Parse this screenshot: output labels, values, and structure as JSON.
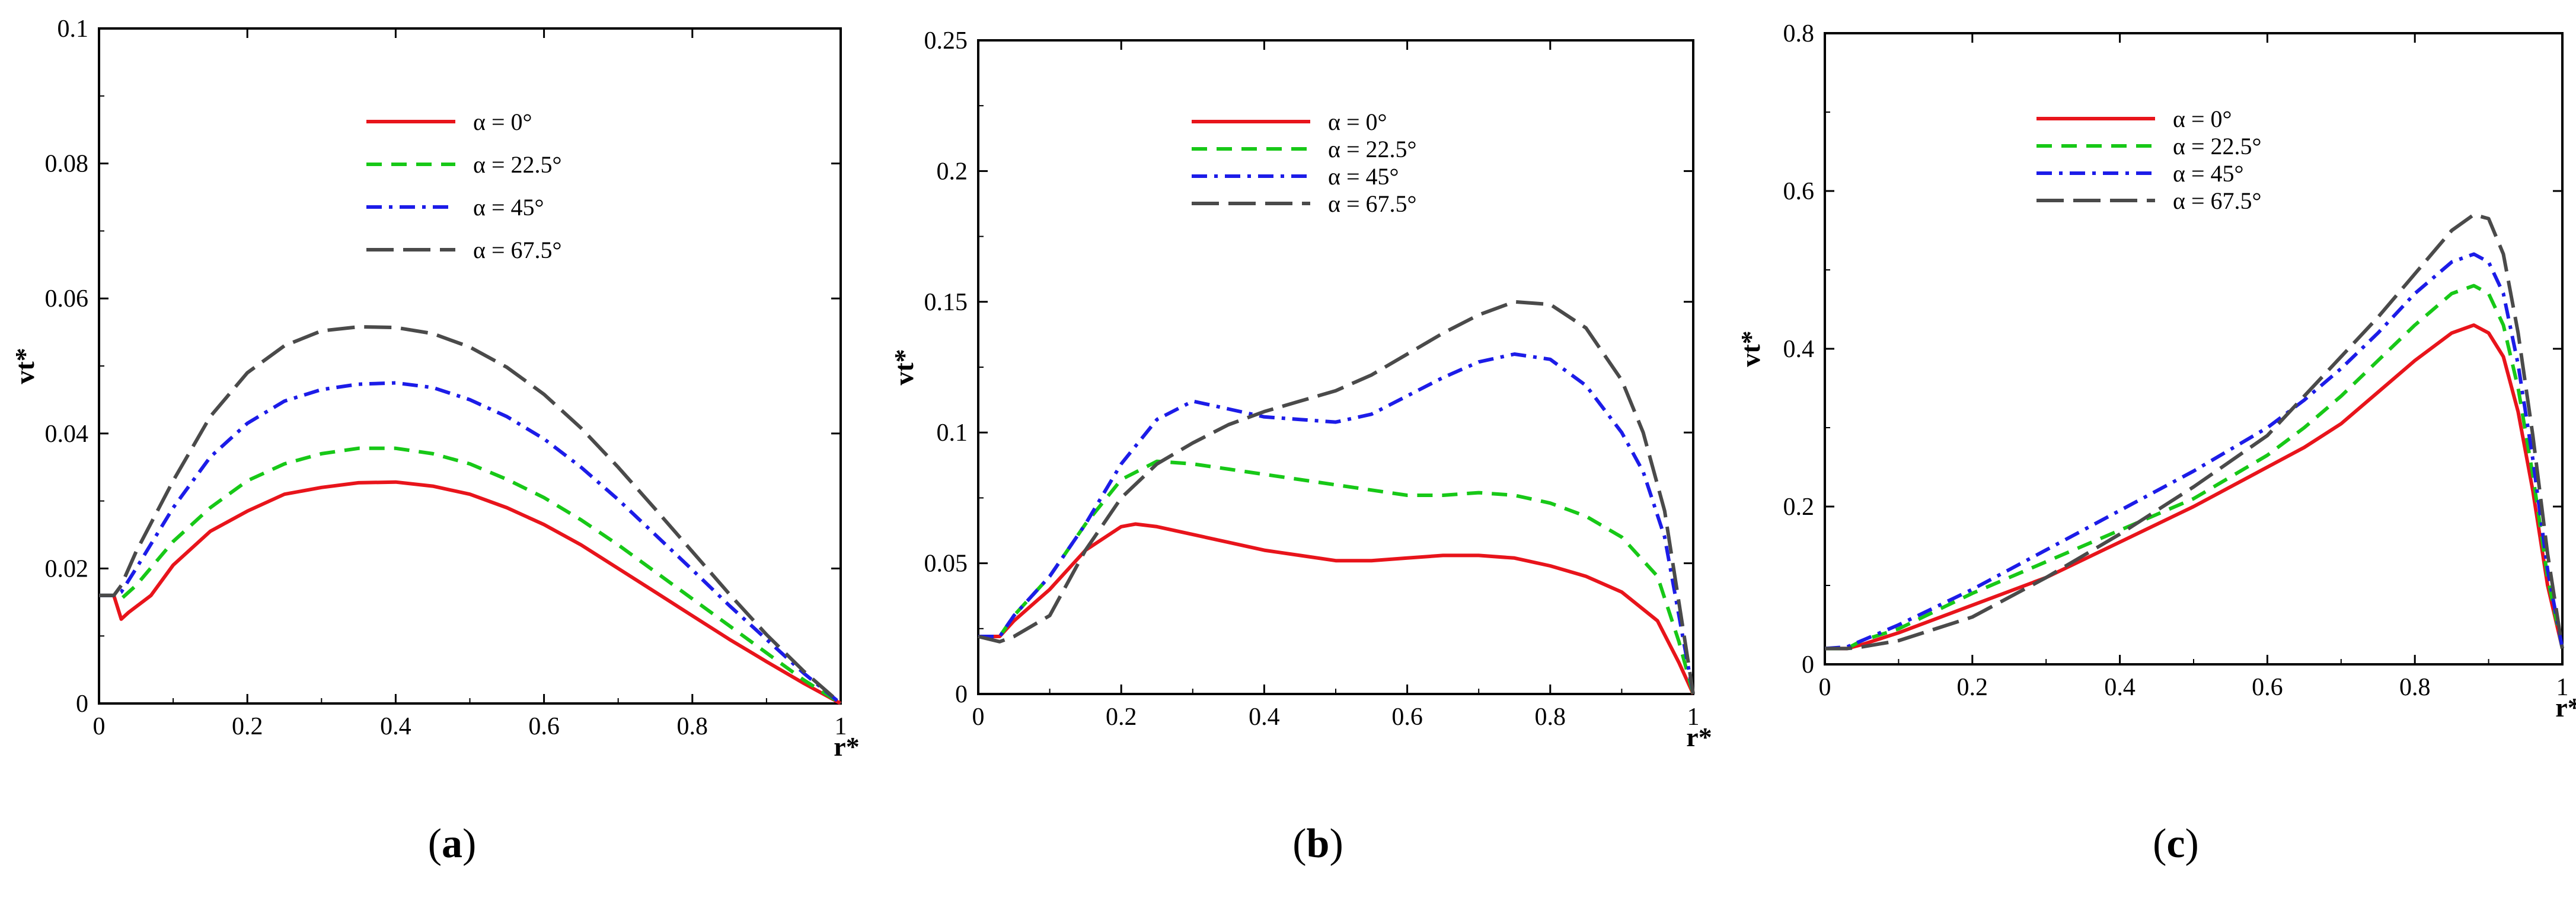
{
  "chart_data": [
    {
      "type": "line",
      "caption": "a",
      "xlabel": "r*",
      "ylabel": "vt*",
      "xlim": [
        0,
        1
      ],
      "ylim": [
        0,
        0.1
      ],
      "xticks": [
        0,
        0.2,
        0.4,
        0.6,
        0.8,
        1
      ],
      "xtick_labels": [
        "0",
        "0.2",
        "0.4",
        "0.6",
        "0.8",
        "1"
      ],
      "yticks": [
        0,
        0.02,
        0.04,
        0.06,
        0.08,
        0.1
      ],
      "ytick_labels": [
        "0",
        "0.02",
        "0.04",
        "0.06",
        "0.08",
        "0.1"
      ],
      "legend_position": "top-center",
      "series": [
        {
          "name": "α = 0°",
          "color": "#e8141b",
          "style": "solid",
          "x": [
            0,
            0.02,
            0.03,
            0.04,
            0.07,
            0.1,
            0.15,
            0.2,
            0.25,
            0.3,
            0.35,
            0.4,
            0.45,
            0.5,
            0.55,
            0.6,
            0.65,
            0.7,
            0.75,
            0.8,
            0.85,
            0.9,
            0.95,
            1.0
          ],
          "y": [
            0.016,
            0.016,
            0.0125,
            0.0135,
            0.016,
            0.0205,
            0.0255,
            0.0285,
            0.031,
            0.032,
            0.0327,
            0.0328,
            0.0322,
            0.031,
            0.029,
            0.0265,
            0.0235,
            0.02,
            0.0165,
            0.013,
            0.0095,
            0.0062,
            0.003,
            0.0
          ]
        },
        {
          "name": "α = 22.5°",
          "color": "#17c817",
          "style": "dash",
          "x": [
            0,
            0.02,
            0.03,
            0.05,
            0.1,
            0.15,
            0.2,
            0.25,
            0.3,
            0.35,
            0.4,
            0.45,
            0.5,
            0.55,
            0.6,
            0.65,
            0.7,
            0.75,
            0.8,
            0.85,
            0.9,
            0.95,
            1.0
          ],
          "y": [
            0.016,
            0.016,
            0.0155,
            0.0175,
            0.024,
            0.029,
            0.033,
            0.0355,
            0.037,
            0.0378,
            0.0378,
            0.037,
            0.0355,
            0.0332,
            0.0305,
            0.0272,
            0.0235,
            0.0195,
            0.0155,
            0.0115,
            0.0075,
            0.0035,
            0.0
          ]
        },
        {
          "name": "α = 45°",
          "color": "#1c1ce8",
          "style": "dashdot",
          "x": [
            0,
            0.02,
            0.03,
            0.05,
            0.1,
            0.15,
            0.2,
            0.25,
            0.3,
            0.35,
            0.4,
            0.45,
            0.5,
            0.55,
            0.6,
            0.65,
            0.7,
            0.75,
            0.8,
            0.85,
            0.9,
            0.95,
            1.0
          ],
          "y": [
            0.016,
            0.016,
            0.0165,
            0.02,
            0.029,
            0.0365,
            0.0415,
            0.0448,
            0.0465,
            0.0473,
            0.0475,
            0.0468,
            0.045,
            0.0425,
            0.0392,
            0.035,
            0.0302,
            0.025,
            0.0198,
            0.0145,
            0.0095,
            0.0045,
            0.0
          ]
        },
        {
          "name": "α = 67.5°",
          "color": "#4a4a4a",
          "style": "longdash",
          "x": [
            0,
            0.02,
            0.03,
            0.05,
            0.1,
            0.15,
            0.2,
            0.25,
            0.3,
            0.35,
            0.4,
            0.45,
            0.5,
            0.55,
            0.6,
            0.65,
            0.7,
            0.75,
            0.8,
            0.85,
            0.9,
            0.95,
            1.0
          ],
          "y": [
            0.016,
            0.016,
            0.0175,
            0.0225,
            0.033,
            0.0425,
            0.049,
            0.053,
            0.0552,
            0.0558,
            0.0557,
            0.0548,
            0.0528,
            0.0498,
            0.0458,
            0.0408,
            0.035,
            0.0288,
            0.0225,
            0.0162,
            0.0102,
            0.0048,
            0.0
          ]
        }
      ]
    },
    {
      "type": "line",
      "caption": "b",
      "xlabel": "r*",
      "ylabel": "vt*",
      "xlim": [
        0,
        1
      ],
      "ylim": [
        0,
        0.25
      ],
      "xticks": [
        0,
        0.2,
        0.4,
        0.6,
        0.8,
        1
      ],
      "xtick_labels": [
        "0",
        "0.2",
        "0.4",
        "0.6",
        "0.8",
        "1"
      ],
      "yticks": [
        0,
        0.05,
        0.1,
        0.15,
        0.2,
        0.25
      ],
      "ytick_labels": [
        "0",
        "0.05",
        "0.1",
        "0.15",
        "0.2",
        "0.25"
      ],
      "legend_position": "top-center",
      "series": [
        {
          "name": "α = 0°",
          "color": "#e8141b",
          "style": "solid",
          "x": [
            0,
            0.03,
            0.05,
            0.1,
            0.15,
            0.2,
            0.22,
            0.25,
            0.3,
            0.35,
            0.4,
            0.45,
            0.5,
            0.55,
            0.6,
            0.65,
            0.7,
            0.75,
            0.8,
            0.85,
            0.9,
            0.95,
            0.98,
            1.0
          ],
          "y": [
            0.022,
            0.022,
            0.028,
            0.04,
            0.055,
            0.064,
            0.065,
            0.064,
            0.061,
            0.058,
            0.055,
            0.053,
            0.051,
            0.051,
            0.052,
            0.053,
            0.053,
            0.052,
            0.049,
            0.045,
            0.039,
            0.028,
            0.012,
            0.0
          ]
        },
        {
          "name": "α = 22.5°",
          "color": "#17c817",
          "style": "dash",
          "x": [
            0,
            0.03,
            0.05,
            0.1,
            0.15,
            0.2,
            0.25,
            0.3,
            0.35,
            0.4,
            0.45,
            0.5,
            0.55,
            0.6,
            0.65,
            0.7,
            0.75,
            0.8,
            0.85,
            0.9,
            0.95,
            0.98,
            1.0
          ],
          "y": [
            0.022,
            0.022,
            0.03,
            0.045,
            0.065,
            0.082,
            0.089,
            0.088,
            0.086,
            0.084,
            0.082,
            0.08,
            0.078,
            0.076,
            0.076,
            0.077,
            0.076,
            0.073,
            0.068,
            0.06,
            0.045,
            0.02,
            0.0
          ]
        },
        {
          "name": "α = 45°",
          "color": "#1c1ce8",
          "style": "dashdot",
          "x": [
            0,
            0.03,
            0.05,
            0.1,
            0.15,
            0.2,
            0.25,
            0.3,
            0.35,
            0.4,
            0.45,
            0.5,
            0.55,
            0.6,
            0.65,
            0.7,
            0.75,
            0.8,
            0.85,
            0.9,
            0.93,
            0.96,
            0.98,
            1.0
          ],
          "y": [
            0.022,
            0.022,
            0.03,
            0.045,
            0.065,
            0.088,
            0.105,
            0.112,
            0.109,
            0.106,
            0.105,
            0.104,
            0.107,
            0.114,
            0.121,
            0.127,
            0.13,
            0.128,
            0.118,
            0.1,
            0.085,
            0.06,
            0.03,
            0.0
          ]
        },
        {
          "name": "α = 67.5°",
          "color": "#4a4a4a",
          "style": "longdash",
          "x": [
            0,
            0.03,
            0.05,
            0.1,
            0.15,
            0.2,
            0.25,
            0.3,
            0.35,
            0.4,
            0.45,
            0.5,
            0.55,
            0.6,
            0.65,
            0.7,
            0.75,
            0.8,
            0.85,
            0.9,
            0.93,
            0.96,
            0.98,
            1.0
          ],
          "y": [
            0.022,
            0.02,
            0.022,
            0.03,
            0.055,
            0.075,
            0.088,
            0.096,
            0.103,
            0.108,
            0.112,
            0.116,
            0.122,
            0.13,
            0.138,
            0.145,
            0.15,
            0.149,
            0.14,
            0.12,
            0.1,
            0.07,
            0.035,
            0.0
          ]
        }
      ]
    },
    {
      "type": "line",
      "caption": "c",
      "xlabel": "r*",
      "ylabel": "vt*",
      "xlim": [
        0,
        1
      ],
      "ylim": [
        0,
        0.8
      ],
      "xticks": [
        0,
        0.2,
        0.4,
        0.6,
        0.8,
        1
      ],
      "xtick_labels": [
        "0",
        "0.2",
        "0.4",
        "0.6",
        "0.8",
        "1"
      ],
      "yticks": [
        0,
        0.2,
        0.4,
        0.6,
        0.8
      ],
      "ytick_labels": [
        "0",
        "0.2",
        "0.4",
        "0.6",
        "0.8"
      ],
      "legend_position": "top-center",
      "series": [
        {
          "name": "α = 0°",
          "color": "#e8141b",
          "style": "solid",
          "x": [
            0,
            0.03,
            0.05,
            0.1,
            0.2,
            0.3,
            0.4,
            0.5,
            0.6,
            0.65,
            0.7,
            0.75,
            0.8,
            0.85,
            0.88,
            0.9,
            0.92,
            0.94,
            0.96,
            0.98,
            1.0
          ],
          "y": [
            0.02,
            0.02,
            0.025,
            0.04,
            0.075,
            0.11,
            0.155,
            0.2,
            0.25,
            0.275,
            0.305,
            0.345,
            0.385,
            0.42,
            0.43,
            0.42,
            0.39,
            0.32,
            0.22,
            0.1,
            0.02
          ]
        },
        {
          "name": "α = 22.5°",
          "color": "#17c817",
          "style": "dash",
          "x": [
            0,
            0.03,
            0.05,
            0.1,
            0.2,
            0.3,
            0.4,
            0.5,
            0.6,
            0.65,
            0.7,
            0.75,
            0.8,
            0.85,
            0.88,
            0.9,
            0.92,
            0.94,
            0.96,
            0.98,
            1.0
          ],
          "y": [
            0.02,
            0.02,
            0.03,
            0.045,
            0.09,
            0.13,
            0.17,
            0.21,
            0.265,
            0.3,
            0.34,
            0.385,
            0.43,
            0.47,
            0.48,
            0.47,
            0.43,
            0.35,
            0.24,
            0.11,
            0.02
          ]
        },
        {
          "name": "α = 45°",
          "color": "#1c1ce8",
          "style": "dashdot",
          "x": [
            0,
            0.03,
            0.05,
            0.1,
            0.2,
            0.3,
            0.4,
            0.5,
            0.6,
            0.65,
            0.7,
            0.75,
            0.8,
            0.85,
            0.88,
            0.9,
            0.92,
            0.94,
            0.96,
            0.98,
            1.0
          ],
          "y": [
            0.02,
            0.022,
            0.03,
            0.05,
            0.095,
            0.145,
            0.195,
            0.245,
            0.3,
            0.335,
            0.375,
            0.42,
            0.47,
            0.51,
            0.52,
            0.51,
            0.47,
            0.38,
            0.26,
            0.12,
            0.02
          ]
        },
        {
          "name": "α = 67.5°",
          "color": "#4a4a4a",
          "style": "longdash",
          "x": [
            0,
            0.03,
            0.05,
            0.1,
            0.2,
            0.3,
            0.4,
            0.5,
            0.6,
            0.65,
            0.7,
            0.75,
            0.8,
            0.85,
            0.88,
            0.9,
            0.92,
            0.94,
            0.96,
            0.98,
            1.0
          ],
          "y": [
            0.02,
            0.02,
            0.022,
            0.03,
            0.06,
            0.11,
            0.165,
            0.225,
            0.29,
            0.34,
            0.39,
            0.44,
            0.495,
            0.55,
            0.57,
            0.565,
            0.52,
            0.42,
            0.29,
            0.14,
            0.02
          ]
        }
      ]
    }
  ]
}
